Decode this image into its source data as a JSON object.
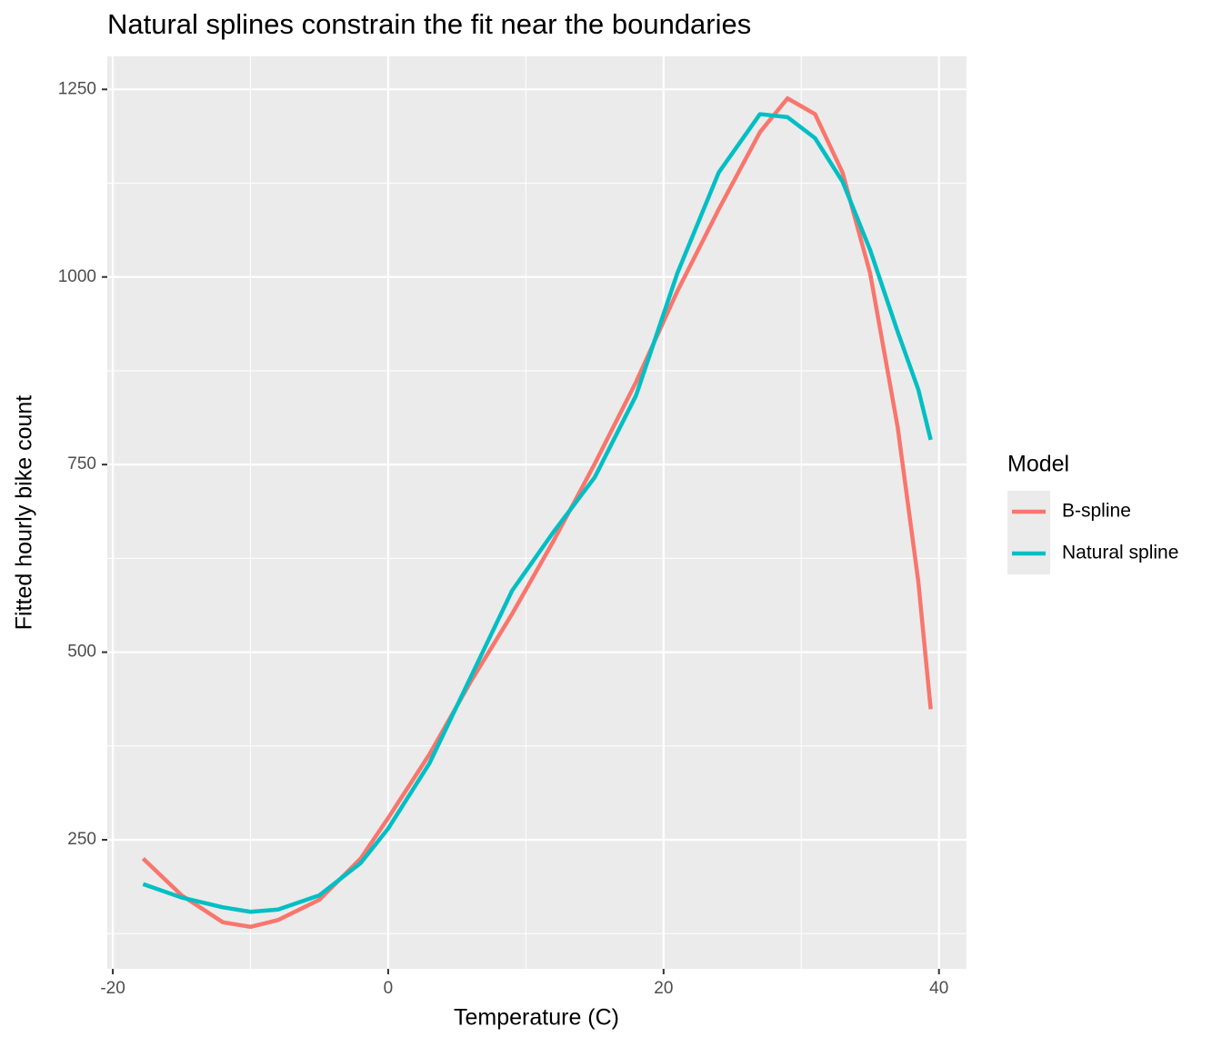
{
  "chart_data": {
    "type": "line",
    "title": "Natural splines constrain the fit near the boundaries",
    "xlabel": "Temperature (C)",
    "ylabel": "Fitted hourly bike count",
    "legend_title": "Model",
    "legend_position": "right",
    "grid": true,
    "x": [
      -17.8,
      -15,
      -12,
      -10,
      -8,
      -5,
      -2,
      0,
      3,
      6,
      9,
      12,
      15,
      18,
      21,
      24,
      27,
      29,
      31,
      33,
      35,
      37,
      38.5,
      39.4
    ],
    "series": [
      {
        "name": "B-spline",
        "color": "#f8766d",
        "values": [
          225,
          176,
          140,
          134,
          143,
          170,
          225,
          279,
          364,
          461,
          551,
          648,
          751,
          860,
          981,
          1090,
          1193,
          1238,
          1217,
          1139,
          1005,
          800,
          594,
          424
        ]
      },
      {
        "name": "Natural spline",
        "color": "#00bfc4",
        "values": [
          191,
          173,
          160,
          154,
          157,
          176,
          219,
          265,
          352,
          467,
          582,
          660,
          733,
          842,
          1005,
          1139,
          1217,
          1213,
          1185,
          1127,
          1036,
          927,
          850,
          783
        ]
      }
    ],
    "xlim": [
      -20.4,
      42.0
    ],
    "ylim": [
      78,
      1294
    ],
    "xticks": [
      -20,
      0,
      20,
      40
    ],
    "yticks": [
      250,
      500,
      750,
      1000,
      1250
    ],
    "minor_xticks": [
      -10,
      10,
      30
    ],
    "minor_yticks": [
      125,
      375,
      625,
      875,
      1125
    ]
  }
}
